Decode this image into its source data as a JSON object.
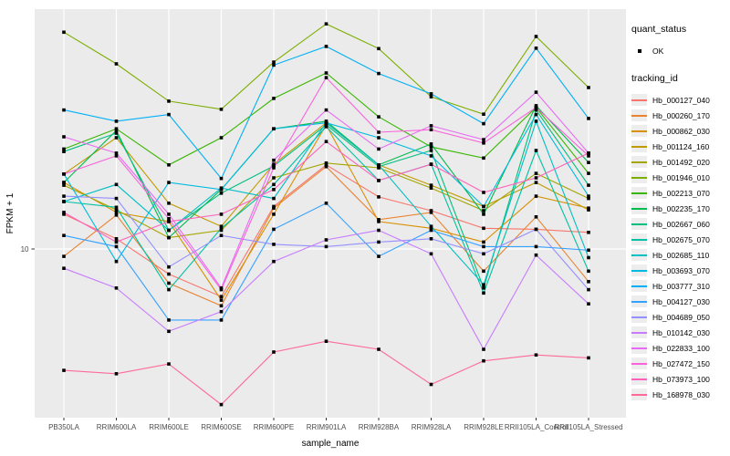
{
  "chart": {
    "y_axis_title": "FPKM + 1",
    "x_axis_title": "sample_name",
    "legend": {
      "quant_status_title": "quant_status",
      "quant_status_items": [
        {
          "label": "OK"
        }
      ],
      "tracking_id_title": "tracking_id"
    },
    "chart_data": {
      "type": "line",
      "title": "",
      "xlabel": "sample_name",
      "ylabel": "FPKM + 1",
      "yscale": "log10",
      "y_ticks": [
        10
      ],
      "y_tick_labels": [
        "10"
      ],
      "ylim": [
        2.5,
        70
      ],
      "grid": true,
      "legend_position": "right",
      "marker": "black-square",
      "x_categories": [
        "PB350LA",
        "RRIM600LA",
        "RRIM600LE",
        "RRIM600SE",
        "RRIM600PE",
        "RRIM901LA",
        "RRIM928BA",
        "RRIM928LA",
        "RRIM928LE",
        "RRII105LA_Control",
        "RRII105LA_Stressed"
      ],
      "series": [
        {
          "name": "Hb_000127_040",
          "color": "#F8766D",
          "values": [
            13.4,
            10.9,
            8.1,
            6.7,
            14.3,
            20.3,
            15.5,
            13.8,
            11.9,
            11.8,
            11.5
          ]
        },
        {
          "name": "Hb_000260_170",
          "color": "#EA8331",
          "values": [
            9.4,
            13.3,
            7.5,
            6.2,
            14.1,
            20.0,
            12.8,
            13.6,
            8.3,
            13.1,
            7.6
          ]
        },
        {
          "name": "Hb_000862_030",
          "color": "#D89000",
          "values": [
            17.5,
            13.6,
            12.6,
            6.5,
            13.4,
            28.4,
            12.6,
            11.9,
            10.6,
            15.6,
            14.1
          ]
        },
        {
          "name": "Hb_001124_160",
          "color": "#C09B00",
          "values": [
            18.8,
            25.5,
            14.7,
            12.1,
            20.4,
            28.9,
            20.3,
            17.1,
            14.3,
            17.5,
            13.9
          ]
        },
        {
          "name": "Hb_001492_020",
          "color": "#A3A500",
          "values": [
            17.1,
            13.9,
            11.0,
            11.7,
            18.2,
            20.6,
            19.8,
            16.7,
            13.8,
            18.9,
            15.3
          ]
        },
        {
          "name": "Hb_001946_010",
          "color": "#7CAE00",
          "values": [
            62,
            47.5,
            34.7,
            32.4,
            48.2,
            66.5,
            54,
            36,
            31.1,
            59.8,
            38.9
          ]
        },
        {
          "name": "Hb_002213_070",
          "color": "#39B600",
          "values": [
            23.2,
            27.5,
            20.3,
            25.5,
            35.5,
            44,
            30.4,
            23.6,
            21.5,
            32.9,
            18.9
          ]
        },
        {
          "name": "Hb_002235_170",
          "color": "#00BB4E",
          "values": [
            17.5,
            27.1,
            11.0,
            16.5,
            27.5,
            29.3,
            20.3,
            24.2,
            13.4,
            33.4,
            20.7
          ]
        },
        {
          "name": "Hb_002667_060",
          "color": "#00BF7D",
          "values": [
            22.7,
            26.5,
            11.7,
            16.0,
            20.1,
            28.4,
            20.0,
            22.9,
            7.2,
            32.2,
            17.1
          ]
        },
        {
          "name": "Hb_002675_070",
          "color": "#00C1A3",
          "values": [
            14.9,
            14.2,
            7.1,
            11.9,
            17.2,
            28.0,
            17.8,
            20.4,
            6.9,
            22.9,
            8.3
          ]
        },
        {
          "name": "Hb_002685_110",
          "color": "#00BFC4",
          "values": [
            14.9,
            17.2,
            11.7,
            16.7,
            15.3,
            28.9,
            20.3,
            12.1,
            7.4,
            29.3,
            9.3
          ]
        },
        {
          "name": "Hb_003693_070",
          "color": "#00BAE0",
          "values": [
            18.8,
            9.0,
            17.5,
            16.5,
            27.5,
            28.9,
            25.5,
            21.9,
            14.3,
            31.0,
            15.6
          ]
        },
        {
          "name": "Hb_003777_310",
          "color": "#00B0F6",
          "values": [
            32.2,
            29.3,
            31.0,
            18.1,
            47.0,
            55.0,
            43.8,
            36.9,
            28.7,
            54.2,
            30.0
          ]
        },
        {
          "name": "Hb_004127_030",
          "color": "#35A2FF",
          "values": [
            11.2,
            10.2,
            5.5,
            5.5,
            11.8,
            14.7,
            9.4,
            11.7,
            10.2,
            10.2,
            9.9
          ]
        },
        {
          "name": "Hb_004689_050",
          "color": "#9590FF",
          "values": [
            15.6,
            15.3,
            8.6,
            11.2,
            10.4,
            10.2,
            10.6,
            10.9,
            9.6,
            11.8,
            7.1
          ]
        },
        {
          "name": "Hb_010142_030",
          "color": "#C77CFF",
          "values": [
            8.5,
            7.2,
            5.0,
            5.9,
            9.0,
            10.8,
            11.7,
            9.6,
            4.3,
            9.5,
            6.3
          ]
        },
        {
          "name": "Hb_022833_100",
          "color": "#E76BF3",
          "values": [
            25.7,
            22.4,
            13.4,
            7.2,
            21.1,
            32.2,
            23.2,
            28.2,
            25.1,
            37.4,
            22.4
          ]
        },
        {
          "name": "Hb_027472_150",
          "color": "#FA62DB",
          "values": [
            18.8,
            21.9,
            12.9,
            7.1,
            19.8,
            42.3,
            26.7,
            27.3,
            24.4,
            32.9,
            21.9
          ]
        },
        {
          "name": "Hb_073973_100",
          "color": "#FF62BC",
          "values": [
            13.6,
            10.6,
            12.6,
            13.4,
            16.5,
            24.7,
            17.8,
            20.4,
            16.1,
            18.2,
            22.4
          ]
        },
        {
          "name": "Hb_168978_030",
          "color": "#FF6A98",
          "values": [
            3.6,
            3.5,
            3.8,
            2.7,
            4.2,
            4.6,
            4.3,
            3.2,
            3.9,
            4.1,
            4.0
          ]
        }
      ]
    }
  }
}
